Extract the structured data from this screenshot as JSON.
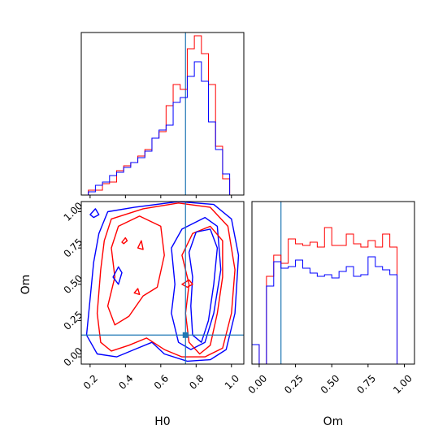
{
  "chart_data": {
    "type": "corner",
    "parameters": [
      "H0",
      "Om"
    ],
    "truth": {
      "H0": 0.74,
      "Om": 0.15
    },
    "colors": {
      "red": "#ff0000",
      "blue": "#0000ff",
      "truth": "#1f77b4"
    },
    "panels": [
      {
        "id": "h0-hist",
        "type": "histogram",
        "xlim": [
          0.15,
          1.07
        ],
        "ylim": [
          0,
          1.0
        ],
        "bin_edges": [
          0.15,
          0.19,
          0.23,
          0.27,
          0.31,
          0.35,
          0.39,
          0.43,
          0.47,
          0.51,
          0.55,
          0.59,
          0.63,
          0.67,
          0.71,
          0.75,
          0.79,
          0.83,
          0.87,
          0.91,
          0.95,
          0.99,
          1.03
        ],
        "series": [
          {
            "name": "red",
            "values": [
              0.0,
              0.03,
              0.03,
              0.07,
              0.08,
              0.15,
              0.18,
              0.2,
              0.24,
              0.28,
              0.35,
              0.39,
              0.55,
              0.68,
              0.65,
              0.9,
              0.98,
              0.87,
              0.68,
              0.3,
              0.1,
              0.0
            ]
          },
          {
            "name": "blue",
            "values": [
              0.0,
              0.02,
              0.06,
              0.08,
              0.12,
              0.14,
              0.17,
              0.2,
              0.23,
              0.27,
              0.35,
              0.4,
              0.43,
              0.57,
              0.6,
              0.73,
              0.82,
              0.7,
              0.45,
              0.28,
              0.13,
              0.0
            ]
          }
        ],
        "xticks": [
          0.2,
          0.4,
          0.6,
          0.8,
          1.0
        ]
      },
      {
        "id": "om-hist",
        "type": "histogram",
        "xlim": [
          -0.05,
          1.07
        ],
        "ylim": [
          0,
          1.0
        ],
        "bin_edges": [
          -0.05,
          0.0,
          0.05,
          0.1,
          0.15,
          0.2,
          0.25,
          0.3,
          0.35,
          0.4,
          0.45,
          0.5,
          0.55,
          0.6,
          0.65,
          0.7,
          0.75,
          0.8,
          0.85,
          0.9,
          0.95,
          1.0,
          1.07
        ],
        "series": [
          {
            "name": "red",
            "values": [
              0.12,
              0.0,
              0.54,
              0.67,
              0.62,
              0.77,
              0.74,
              0.73,
              0.75,
              0.72,
              0.84,
              0.73,
              0.73,
              0.8,
              0.74,
              0.72,
              0.76,
              0.72,
              0.8,
              0.72,
              0.0,
              0.0
            ]
          },
          {
            "name": "blue",
            "values": [
              0.12,
              0.0,
              0.48,
              0.63,
              0.59,
              0.6,
              0.64,
              0.59,
              0.56,
              0.54,
              0.55,
              0.53,
              0.57,
              0.6,
              0.54,
              0.55,
              0.66,
              0.6,
              0.58,
              0.55,
              0.0,
              0.0
            ]
          }
        ],
        "xticks": [
          0.0,
          0.25,
          0.5,
          0.75,
          1.0
        ],
        "xticklabels": [
          "0.00",
          "0.25",
          "0.50",
          "0.75",
          "1.00"
        ],
        "xlabel": "Om"
      },
      {
        "id": "h0-om-contour",
        "type": "contour",
        "xlim": [
          0.15,
          1.07
        ],
        "ylim": [
          -0.05,
          1.07
        ],
        "xticks": [
          0.2,
          0.4,
          0.6,
          0.8,
          1.0
        ],
        "xticklabels": [
          "0.2",
          "0.4",
          "0.6",
          "0.8",
          "1.0"
        ],
        "yticks": [
          0.0,
          0.25,
          0.5,
          0.75,
          1.0
        ],
        "yticklabels": [
          "0.00",
          "0.25",
          "0.50",
          "0.75",
          "1.00"
        ],
        "xlabel": "H0",
        "ylabel": "Om",
        "contours": [
          {
            "series": "blue",
            "points": [
              [
                0.3,
                1.0
              ],
              [
                0.45,
                1.03
              ],
              [
                0.7,
                1.07
              ],
              [
                0.9,
                1.05
              ],
              [
                1.0,
                0.95
              ],
              [
                1.04,
                0.7
              ],
              [
                1.02,
                0.3
              ],
              [
                0.97,
                0.05
              ],
              [
                0.88,
                -0.02
              ],
              [
                0.75,
                -0.03
              ],
              [
                0.62,
                0.02
              ],
              [
                0.55,
                0.1
              ],
              [
                0.45,
                0.05
              ],
              [
                0.35,
                0.0
              ],
              [
                0.24,
                0.02
              ],
              [
                0.18,
                0.15
              ],
              [
                0.2,
                0.4
              ],
              [
                0.22,
                0.65
              ],
              [
                0.25,
                0.85
              ],
              [
                0.3,
                1.0
              ]
            ]
          },
          {
            "series": "red",
            "points": [
              [
                0.32,
                0.95
              ],
              [
                0.5,
                1.02
              ],
              [
                0.7,
                1.06
              ],
              [
                0.88,
                1.03
              ],
              [
                0.98,
                0.9
              ],
              [
                1.02,
                0.6
              ],
              [
                1.0,
                0.3
              ],
              [
                0.95,
                0.06
              ],
              [
                0.85,
                0.0
              ],
              [
                0.72,
                0.0
              ],
              [
                0.62,
                0.05
              ],
              [
                0.52,
                0.13
              ],
              [
                0.42,
                0.08
              ],
              [
                0.32,
                0.04
              ],
              [
                0.26,
                0.1
              ],
              [
                0.24,
                0.3
              ],
              [
                0.26,
                0.6
              ],
              [
                0.28,
                0.8
              ],
              [
                0.32,
                0.95
              ]
            ]
          },
          {
            "series": "red",
            "points": [
              [
                0.36,
                0.9
              ],
              [
                0.48,
                0.97
              ],
              [
                0.6,
                0.9
              ],
              [
                0.62,
                0.7
              ],
              [
                0.58,
                0.48
              ],
              [
                0.5,
                0.42
              ],
              [
                0.42,
                0.28
              ],
              [
                0.34,
                0.22
              ],
              [
                0.3,
                0.35
              ],
              [
                0.34,
                0.55
              ],
              [
                0.32,
                0.75
              ],
              [
                0.36,
                0.9
              ]
            ]
          },
          {
            "series": "blue",
            "points": [
              [
                0.66,
                0.75
              ],
              [
                0.72,
                0.88
              ],
              [
                0.85,
                0.96
              ],
              [
                0.92,
                0.9
              ],
              [
                0.94,
                0.6
              ],
              [
                0.9,
                0.3
              ],
              [
                0.85,
                0.1
              ],
              [
                0.77,
                0.05
              ],
              [
                0.7,
                0.1
              ],
              [
                0.66,
                0.3
              ],
              [
                0.68,
                0.5
              ],
              [
                0.66,
                0.75
              ]
            ]
          },
          {
            "series": "red",
            "points": [
              [
                0.72,
                0.7
              ],
              [
                0.78,
                0.85
              ],
              [
                0.88,
                0.9
              ],
              [
                0.95,
                0.8
              ],
              [
                0.95,
                0.55
              ],
              [
                0.92,
                0.3
              ],
              [
                0.88,
                0.08
              ],
              [
                0.82,
                0.02
              ],
              [
                0.76,
                0.1
              ],
              [
                0.74,
                0.3
              ],
              [
                0.76,
                0.5
              ],
              [
                0.72,
                0.7
              ]
            ]
          },
          {
            "series": "blue",
            "points": [
              [
                0.76,
                0.72
              ],
              [
                0.8,
                0.86
              ],
              [
                0.88,
                0.88
              ],
              [
                0.92,
                0.75
              ],
              [
                0.9,
                0.5
              ],
              [
                0.87,
                0.25
              ],
              [
                0.83,
                0.1
              ],
              [
                0.78,
                0.15
              ],
              [
                0.77,
                0.35
              ],
              [
                0.78,
                0.55
              ],
              [
                0.76,
                0.72
              ]
            ]
          },
          {
            "series": "blue",
            "points": [
              [
                0.2,
                0.98
              ],
              [
                0.23,
                1.02
              ],
              [
                0.25,
                0.98
              ],
              [
                0.22,
                0.96
              ],
              [
                0.2,
                0.98
              ]
            ]
          },
          {
            "series": "red",
            "points": [
              [
                0.38,
                0.79
              ],
              [
                0.4,
                0.82
              ],
              [
                0.41,
                0.8
              ],
              [
                0.39,
                0.78
              ],
              [
                0.38,
                0.79
              ]
            ]
          },
          {
            "series": "red",
            "points": [
              [
                0.47,
                0.75
              ],
              [
                0.49,
                0.8
              ],
              [
                0.5,
                0.74
              ],
              [
                0.47,
                0.75
              ]
            ]
          },
          {
            "series": "blue",
            "points": [
              [
                0.33,
                0.55
              ],
              [
                0.36,
                0.62
              ],
              [
                0.38,
                0.58
              ],
              [
                0.36,
                0.5
              ],
              [
                0.33,
                0.55
              ]
            ]
          },
          {
            "series": "red",
            "points": [
              [
                0.72,
                0.5
              ],
              [
                0.76,
                0.53
              ],
              [
                0.78,
                0.5
              ],
              [
                0.75,
                0.48
              ],
              [
                0.72,
                0.5
              ]
            ]
          },
          {
            "series": "red",
            "points": [
              [
                0.45,
                0.44
              ],
              [
                0.47,
                0.47
              ],
              [
                0.48,
                0.43
              ],
              [
                0.45,
                0.44
              ]
            ]
          }
        ],
        "truth_marker": {
          "x": 0.74,
          "y": 0.15
        }
      }
    ]
  }
}
